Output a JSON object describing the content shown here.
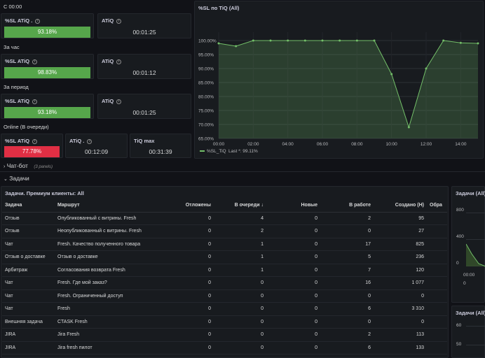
{
  "sections": {
    "c0000": "С 00:00",
    "hour": "За час",
    "period": "За период",
    "online": "Online (В очереди)"
  },
  "stats": {
    "sl_today": {
      "title": "%SL ATiQ .",
      "value": "93.18%"
    },
    "atiq_today": {
      "title": "ATiQ",
      "value": "00:01:25"
    },
    "sl_hour": {
      "title": "%SL ATiQ",
      "value": "98.83%"
    },
    "atiq_hour": {
      "title": "ATiQ",
      "value": "00:01:12"
    },
    "sl_period": {
      "title": "%SL ATiQ",
      "value": "93.18%"
    },
    "atiq_period": {
      "title": "ATiQ",
      "value": "00:01:25"
    },
    "sl_online": {
      "title": "%SL ATiQ",
      "value": "77.78%"
    },
    "atiq_online": {
      "title": "ATiQ .",
      "value": "00:12:09"
    },
    "tiq_max": {
      "title": "TiQ max",
      "value": "00:31:39"
    }
  },
  "colors": {
    "green": "#56a64b",
    "red": "#e02f44",
    "line": "#73bf69"
  },
  "chart_data": {
    "type": "area",
    "title": "%SL по TiQ (All)",
    "x": [
      "00:00",
      "01:00",
      "02:00",
      "03:00",
      "04:00",
      "05:00",
      "06:00",
      "07:00",
      "08:00",
      "09:00",
      "10:00",
      "11:00",
      "12:00",
      "13:00",
      "14:00",
      "15:00"
    ],
    "xticks": [
      "00:00",
      "02:00",
      "04:00",
      "06:00",
      "08:00",
      "10:00",
      "12:00",
      "14:00"
    ],
    "values": [
      99.0,
      98.0,
      100.0,
      100.0,
      100.0,
      100.0,
      100.0,
      100.0,
      100.0,
      100.0,
      88.0,
      69.0,
      90.0,
      100.0,
      99.2,
      99.0
    ],
    "ylim": [
      65,
      103
    ],
    "yticks": [
      "100.00%",
      "95.00%",
      "90.00%",
      "85.00%",
      "80.00%",
      "75.00%",
      "70.00%",
      "65.00%"
    ],
    "ytick_values": [
      100,
      95,
      90,
      85,
      80,
      75,
      70,
      65
    ],
    "legend": {
      "name": "%SL_TiQ",
      "last_label": "Last *: 99.11%"
    }
  },
  "chatbot": {
    "label": "Чат-бот",
    "panels": "(3 panels)"
  },
  "tasks_row": {
    "label": "Задачи"
  },
  "table": {
    "title": "Задачи. Премиум клиенты: All",
    "headers": {
      "task": "Задача",
      "route": "Маршрут",
      "postponed": "Отложены",
      "queue": "В очереди ↓",
      "new": "Новые",
      "inwork": "В работе",
      "created": "Создано (Н)",
      "cut": "Обра"
    },
    "rows": [
      {
        "task": "Отзыв",
        "route": "Опубликованный с витрины. Fresh",
        "postponed": "0",
        "queue": "4",
        "new": "0",
        "inwork": "2",
        "created": "95"
      },
      {
        "task": "Отзыв",
        "route": "Неопубликованный с витрины. Fresh",
        "postponed": "0",
        "queue": "2",
        "new": "0",
        "inwork": "0",
        "created": "27"
      },
      {
        "task": "Чат",
        "route": "Fresh. Качество полученного товара",
        "postponed": "0",
        "queue": "1",
        "new": "0",
        "inwork": "17",
        "created": "825"
      },
      {
        "task": "Отзыв о доставке",
        "route": "Отзыв о доставке",
        "postponed": "0",
        "queue": "1",
        "new": "0",
        "inwork": "5",
        "created": "236"
      },
      {
        "task": "Арбитраж",
        "route": "Согласования возврата Fresh",
        "postponed": "0",
        "queue": "1",
        "new": "0",
        "inwork": "7",
        "created": "120"
      },
      {
        "task": "Чат",
        "route": "Fresh. Где мой заказ?",
        "postponed": "0",
        "queue": "0",
        "new": "0",
        "inwork": "16",
        "created": "1 077"
      },
      {
        "task": "Чат",
        "route": "Fresh. Ограниченный доступ",
        "postponed": "0",
        "queue": "0",
        "new": "0",
        "inwork": "0",
        "created": "0"
      },
      {
        "task": "Чат",
        "route": "Fresh",
        "postponed": "0",
        "queue": "0",
        "new": "0",
        "inwork": "6",
        "created": "3 310"
      },
      {
        "task": "Внешняя задача",
        "route": "CTASK Fresh",
        "postponed": "0",
        "queue": "0",
        "new": "0",
        "inwork": "0",
        "created": "0"
      },
      {
        "task": "JIRA",
        "route": "Jira Fresh",
        "postponed": "0",
        "queue": "0",
        "new": "0",
        "inwork": "2",
        "created": "113"
      },
      {
        "task": "JIRA",
        "route": "Jira fresh пилот",
        "postponed": "0",
        "queue": "0",
        "new": "0",
        "inwork": "6",
        "created": "133"
      }
    ]
  },
  "side1": {
    "title": "Задачи (All)",
    "y1": "800",
    "y2": "400",
    "y3": "0",
    "x1": "00:00",
    "x2": "0"
  },
  "side2": {
    "title": "Задачи (All)",
    "y1": "60",
    "y2": "50"
  }
}
